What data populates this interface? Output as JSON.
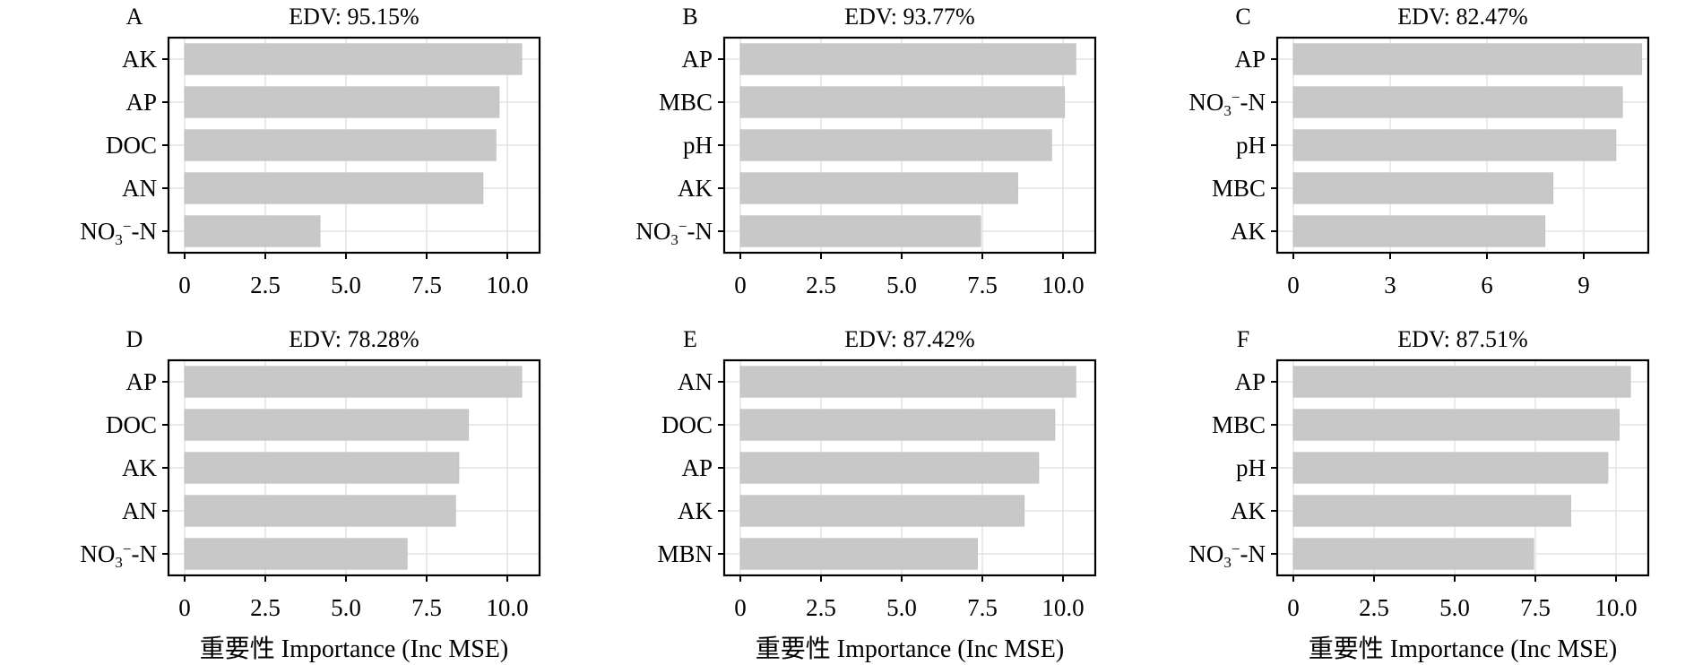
{
  "figure": {
    "xlabel": "重要性 Importance (Inc MSE)"
  },
  "chart_data": [
    {
      "type": "bar",
      "orientation": "horizontal",
      "panel": "A",
      "title": "EDV: 95.15%",
      "categories": [
        "AK",
        "AP",
        "DOC",
        "AN",
        "NO3−-N"
      ],
      "values": [
        10.45,
        9.75,
        9.65,
        9.25,
        4.2
      ],
      "xlim": [
        -0.5,
        11.0
      ],
      "xticks": [
        0,
        2.5,
        5.0,
        7.5,
        10.0
      ],
      "xtick_labels": [
        "0",
        "2.5",
        "5.0",
        "7.5",
        "10.0"
      ],
      "grid": true,
      "bar_color": "#c8c8c8"
    },
    {
      "type": "bar",
      "orientation": "horizontal",
      "panel": "B",
      "title": "EDV: 93.77%",
      "categories": [
        "AP",
        "MBC",
        "pH",
        "AK",
        "NO3−-N"
      ],
      "values": [
        10.4,
        10.05,
        9.65,
        8.6,
        7.45
      ],
      "xlim": [
        -0.5,
        11.0
      ],
      "xticks": [
        0,
        2.5,
        5.0,
        7.5,
        10.0
      ],
      "xtick_labels": [
        "0",
        "2.5",
        "5.0",
        "7.5",
        "10.0"
      ],
      "grid": true,
      "bar_color": "#c8c8c8"
    },
    {
      "type": "bar",
      "orientation": "horizontal",
      "panel": "C",
      "title": "EDV: 82.47%",
      "categories": [
        "AP",
        "NO3−-N",
        "pH",
        "MBC",
        "AK"
      ],
      "values": [
        10.8,
        10.2,
        10.0,
        8.05,
        7.8
      ],
      "xlim": [
        -0.5,
        11.0
      ],
      "xticks": [
        0,
        3,
        6,
        9
      ],
      "xtick_labels": [
        "0",
        "3",
        "6",
        "9"
      ],
      "grid": true,
      "bar_color": "#c8c8c8"
    },
    {
      "type": "bar",
      "orientation": "horizontal",
      "panel": "D",
      "title": "EDV: 78.28%",
      "categories": [
        "AP",
        "DOC",
        "AK",
        "AN",
        "NO3−-N"
      ],
      "values": [
        10.45,
        8.8,
        8.5,
        8.4,
        6.9
      ],
      "xlim": [
        -0.5,
        11.0
      ],
      "xticks": [
        0,
        2.5,
        5.0,
        7.5,
        10.0
      ],
      "xtick_labels": [
        "0",
        "2.5",
        "5.0",
        "7.5",
        "10.0"
      ],
      "grid": true,
      "bar_color": "#c8c8c8"
    },
    {
      "type": "bar",
      "orientation": "horizontal",
      "panel": "E",
      "title": "EDV: 87.42%",
      "categories": [
        "AN",
        "DOC",
        "AP",
        "AK",
        "MBN"
      ],
      "values": [
        10.4,
        9.75,
        9.25,
        8.8,
        7.35
      ],
      "xlim": [
        -0.5,
        11.0
      ],
      "xticks": [
        0,
        2.5,
        5.0,
        7.5,
        10.0
      ],
      "xtick_labels": [
        "0",
        "2.5",
        "5.0",
        "7.5",
        "10.0"
      ],
      "grid": true,
      "bar_color": "#c8c8c8"
    },
    {
      "type": "bar",
      "orientation": "horizontal",
      "panel": "F",
      "title": "EDV: 87.51%",
      "categories": [
        "AP",
        "MBC",
        "pH",
        "AK",
        "NO3−-N"
      ],
      "values": [
        10.45,
        10.1,
        9.75,
        8.6,
        7.45
      ],
      "xlim": [
        -0.5,
        11.0
      ],
      "xticks": [
        0,
        2.5,
        5.0,
        7.5,
        10.0
      ],
      "xtick_labels": [
        "0",
        "2.5",
        "5.0",
        "7.5",
        "10.0"
      ],
      "grid": true,
      "bar_color": "#c8c8c8"
    }
  ]
}
